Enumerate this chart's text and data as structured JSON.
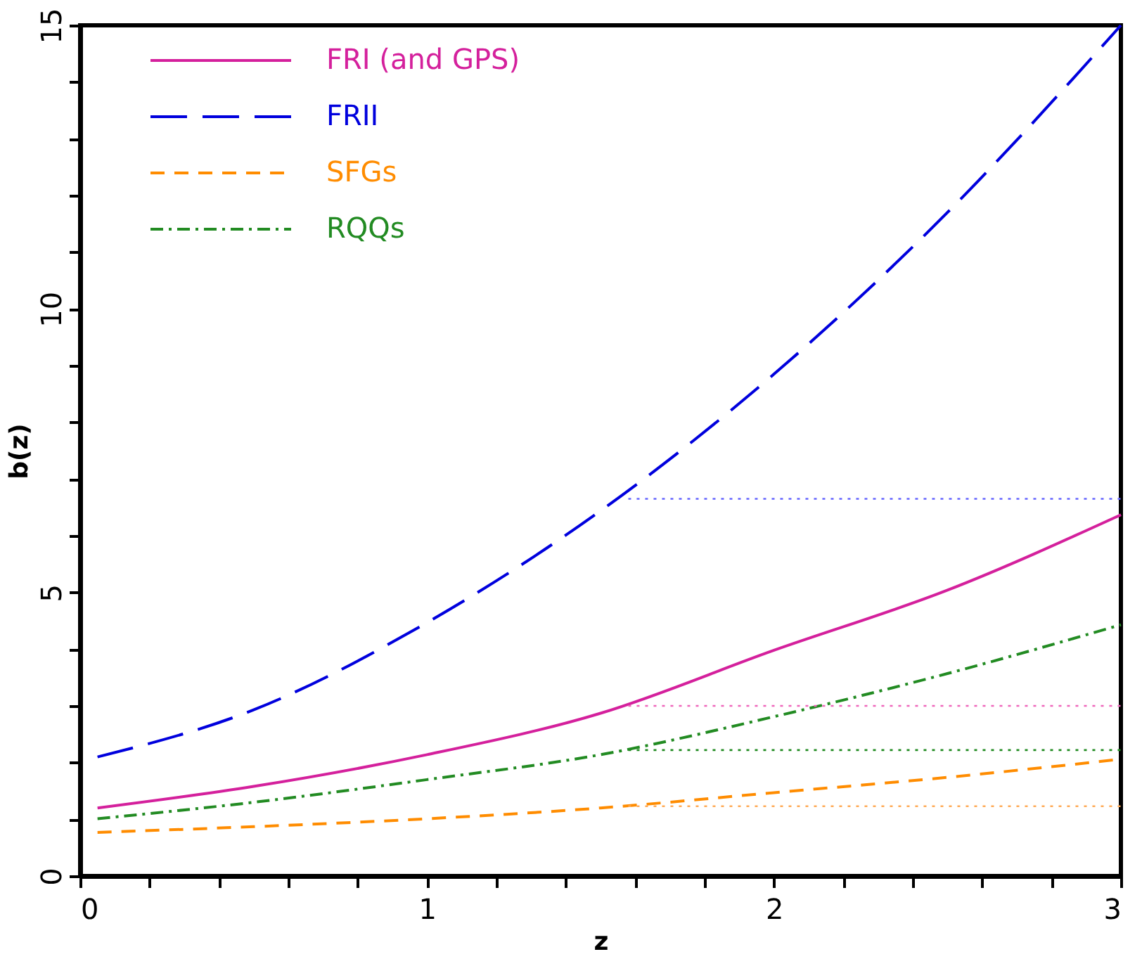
{
  "chart_data": {
    "type": "line",
    "xlabel": "z",
    "ylabel": "b(z)",
    "xlim": [
      0,
      3
    ],
    "ylim": [
      0,
      15
    ],
    "xticks": [
      0,
      {
        "value": 0.2,
        "label": null
      },
      {
        "value": 0.4,
        "label": null
      },
      {
        "value": 0.6,
        "label": null
      },
      {
        "value": 0.8,
        "label": null
      },
      1,
      {
        "value": 1.2,
        "label": null
      },
      {
        "value": 1.4,
        "label": null
      },
      {
        "value": 1.6,
        "label": null
      },
      {
        "value": 1.8,
        "label": null
      },
      2,
      {
        "value": 2.2,
        "label": null
      },
      {
        "value": 2.4,
        "label": null
      },
      {
        "value": 2.6,
        "label": null
      },
      {
        "value": 2.8,
        "label": null
      },
      3
    ],
    "yticks": [
      0,
      {
        "value": 1,
        "label": null
      },
      {
        "value": 2,
        "label": null
      },
      {
        "value": 3,
        "label": null
      },
      {
        "value": 4,
        "label": null
      },
      5,
      {
        "value": 6,
        "label": null
      },
      {
        "value": 7,
        "label": null
      },
      {
        "value": 8,
        "label": null
      },
      {
        "value": 9,
        "label": null
      },
      10,
      {
        "value": 11,
        "label": null
      },
      {
        "value": 12,
        "label": null
      },
      {
        "value": 13,
        "label": null
      },
      {
        "value": 14,
        "label": null
      },
      15
    ],
    "grid": false,
    "legend": "top left",
    "marker": "none",
    "series": [
      {
        "name": "FRI (and GPS)",
        "color": "#d4209c",
        "line_style": "solid",
        "x": [
          0.05,
          0.5,
          1,
          1.5,
          2,
          2.5,
          3
        ],
        "values": [
          1.2,
          1.58,
          2.14,
          2.87,
          3.98,
          5.04,
          6.37
        ]
      },
      {
        "name": "FRII",
        "color": "#0000dd",
        "line_style": "longdash",
        "x": [
          0.05,
          0.5,
          1,
          1.5,
          2,
          2.5,
          3
        ],
        "values": [
          2.1,
          2.93,
          4.47,
          6.44,
          8.85,
          11.7,
          15
        ]
      },
      {
        "name": "SFGs",
        "color": "#ff8c00",
        "line_style": "dashed",
        "x": [
          0.05,
          0.5,
          1,
          1.5,
          2,
          2.5,
          3
        ],
        "values": [
          0.77,
          0.87,
          1.01,
          1.2,
          1.47,
          1.74,
          2.06
        ]
      },
      {
        "name": "RQQs",
        "color": "#228b22",
        "line_style": "dashdot",
        "x": [
          0.05,
          0.5,
          1,
          1.5,
          2,
          2.5,
          3
        ],
        "values": [
          1.01,
          1.3,
          1.7,
          2.14,
          2.81,
          3.57,
          4.43
        ]
      },
      {
        "color": "#6666ff",
        "line_style": "dotted",
        "x": [
          1.58,
          3
        ],
        "values": [
          6.65,
          6.65
        ]
      },
      {
        "color": "#ee66bb",
        "line_style": "dotted",
        "x": [
          1.58,
          3
        ],
        "values": [
          3.0,
          3.0
        ]
      },
      {
        "color": "#228b22",
        "line_style": "dotted",
        "x": [
          1.58,
          3
        ],
        "values": [
          2.22,
          2.22
        ]
      },
      {
        "color": "#ffaa55",
        "line_style": "dotted",
        "x": [
          1.58,
          3
        ],
        "values": [
          1.23,
          1.23
        ]
      }
    ]
  }
}
